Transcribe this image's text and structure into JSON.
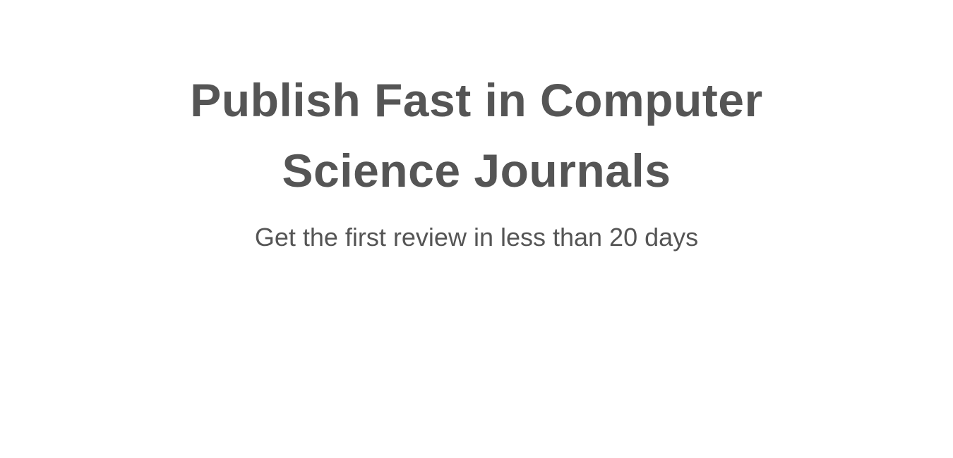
{
  "hero": {
    "title_line1": "Publish Fast in Computer",
    "title_line2": "Science Journals",
    "subtitle": "Get the first review in less than 20 days"
  },
  "colors": {
    "text": "#555555",
    "background": "#ffffff"
  }
}
